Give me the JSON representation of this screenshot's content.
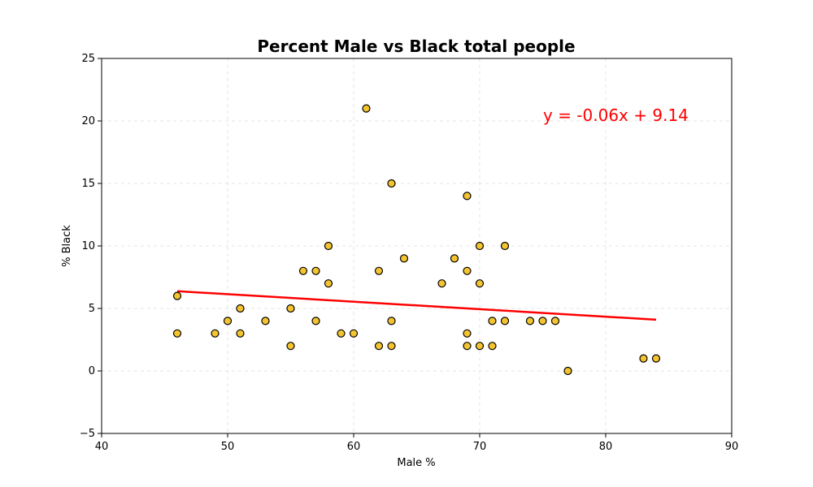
{
  "chart_data": {
    "type": "scatter",
    "title": "Percent Male vs Black total people",
    "xlabel": "Male %",
    "ylabel": "% Black",
    "xlim": [
      40,
      90
    ],
    "ylim": [
      -5,
      25
    ],
    "x_ticks": [
      40,
      50,
      60,
      70,
      80,
      90
    ],
    "y_ticks": [
      -5,
      0,
      5,
      10,
      15,
      20,
      25
    ],
    "grid": true,
    "point_color": "#f4c430",
    "point_edge_color": "#000000",
    "regression_color": "#ff0000",
    "regression": {
      "slope": -0.06,
      "intercept": 9.14,
      "x_range": [
        46,
        84
      ],
      "equation": "y = -0.06x + 9.14"
    },
    "points": [
      [
        46,
        6
      ],
      [
        46,
        3
      ],
      [
        49,
        3
      ],
      [
        50,
        4
      ],
      [
        51,
        5
      ],
      [
        51,
        3
      ],
      [
        53,
        4
      ],
      [
        55,
        5
      ],
      [
        55,
        2
      ],
      [
        56,
        8
      ],
      [
        57,
        8
      ],
      [
        57,
        4
      ],
      [
        58,
        10
      ],
      [
        58,
        7
      ],
      [
        59,
        3
      ],
      [
        60,
        3
      ],
      [
        61,
        21
      ],
      [
        62,
        8
      ],
      [
        62,
        2
      ],
      [
        63,
        15
      ],
      [
        63,
        4
      ],
      [
        63,
        2
      ],
      [
        64,
        9
      ],
      [
        67,
        7
      ],
      [
        68,
        9
      ],
      [
        69,
        14
      ],
      [
        69,
        8
      ],
      [
        69,
        3
      ],
      [
        69,
        2
      ],
      [
        70,
        10
      ],
      [
        70,
        7
      ],
      [
        70,
        2
      ],
      [
        71,
        4
      ],
      [
        71,
        2
      ],
      [
        72,
        10
      ],
      [
        72,
        4
      ],
      [
        74,
        4
      ],
      [
        75,
        4
      ],
      [
        76,
        4
      ],
      [
        77,
        0
      ],
      [
        83,
        1
      ],
      [
        84,
        1
      ]
    ]
  }
}
